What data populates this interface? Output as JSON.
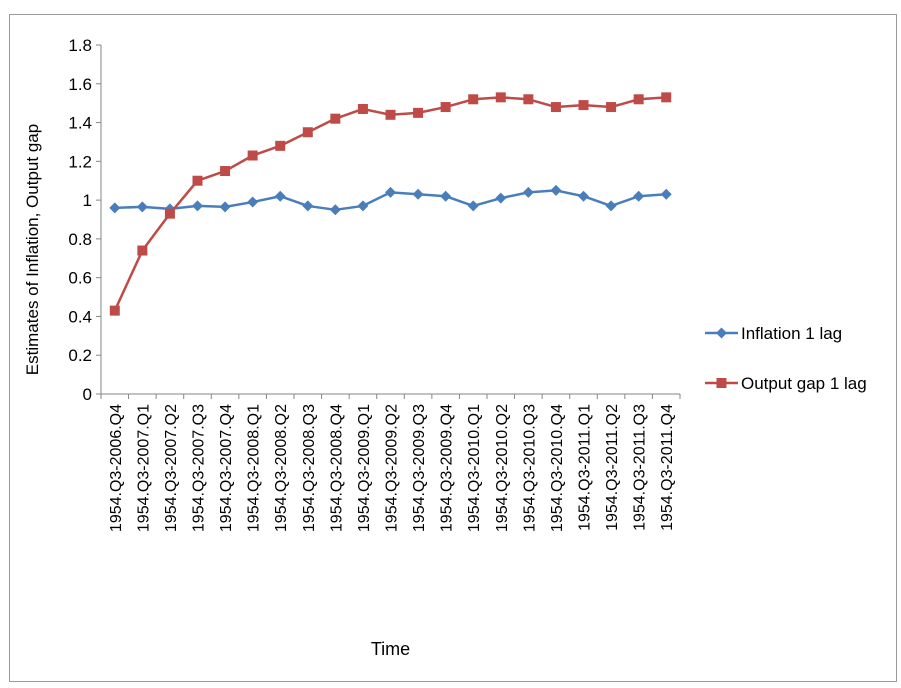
{
  "chart_data": {
    "type": "line",
    "title": "",
    "xlabel": "Time",
    "ylabel": "Estimates of Inflation, Output gap",
    "ylim": [
      0,
      1.8
    ],
    "y_ticks": [
      "0",
      "0.2",
      "0.4",
      "0.6",
      "0.8",
      "1",
      "1.2",
      "1.4",
      "1.6",
      "1.8"
    ],
    "grid": false,
    "legend_position": "right",
    "categories": [
      "1954.Q3-2006.Q4",
      "1954.Q3-2007.Q1",
      "1954.Q3-2007.Q2",
      "1954.Q3-2007.Q3",
      "1954.Q3-2007.Q4",
      "1954.Q3-2008.Q1",
      "1954.Q3-2008.Q2",
      "1954.Q3-2008.Q3",
      "1954.Q3-2008.Q4",
      "1954.Q3-2009.Q1",
      "1954.Q3-2009.Q2",
      "1954.Q3-2009.Q3",
      "1954.Q3-2009.Q4",
      "1954.Q3-2010.Q1",
      "1954.Q3-2010.Q2",
      "1954.Q3-2010.Q3",
      "1954.Q3-2010.Q4",
      "1954.Q3-2011.Q1",
      "1954.Q3-2011.Q2",
      "1954.Q3-2011.Q3",
      "1954.Q3-2011.Q4"
    ],
    "series": [
      {
        "name": "Inflation 1 lag",
        "color": "#4a7ebb",
        "marker": "diamond",
        "values": [
          0.96,
          0.965,
          0.955,
          0.97,
          0.965,
          0.99,
          1.02,
          0.97,
          0.95,
          0.97,
          1.04,
          1.03,
          1.02,
          0.97,
          1.01,
          1.04,
          1.05,
          1.02,
          0.97,
          1.02,
          1.03
        ]
      },
      {
        "name": "Output gap 1 lag",
        "color": "#be4b48",
        "marker": "square",
        "values": [
          0.43,
          0.74,
          0.93,
          1.1,
          1.15,
          1.23,
          1.28,
          1.35,
          1.42,
          1.47,
          1.44,
          1.45,
          1.48,
          1.52,
          1.53,
          1.52,
          1.48,
          1.49,
          1.48,
          1.52,
          1.53
        ]
      }
    ]
  }
}
